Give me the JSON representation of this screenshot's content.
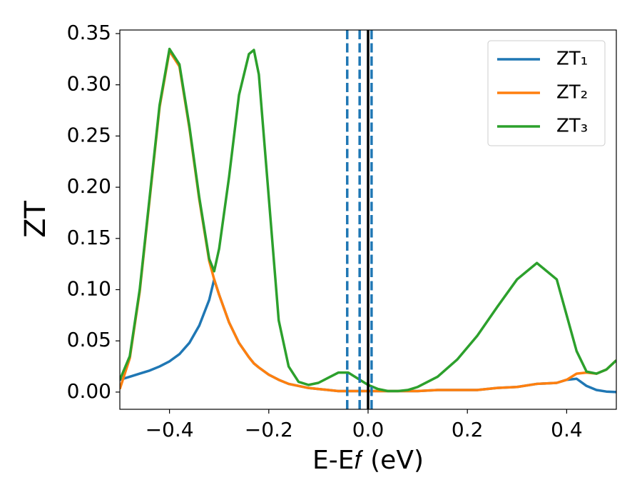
{
  "chart_data": {
    "type": "line",
    "xlabel": "E-E𝑓 (eV)",
    "ylabel": "ZT",
    "x": [
      -0.5,
      -0.48,
      -0.46,
      -0.44,
      -0.42,
      -0.4,
      -0.38,
      -0.36,
      -0.34,
      -0.32,
      -0.31,
      -0.3,
      -0.28,
      -0.26,
      -0.24,
      -0.23,
      -0.22,
      -0.2,
      -0.18,
      -0.16,
      -0.14,
      -0.12,
      -0.1,
      -0.08,
      -0.06,
      -0.04,
      -0.02,
      0.0,
      0.02,
      0.04,
      0.06,
      0.08,
      0.1,
      0.14,
      0.18,
      0.22,
      0.26,
      0.3,
      0.34,
      0.38,
      0.4,
      0.42,
      0.44,
      0.46,
      0.48,
      0.5
    ],
    "series": [
      {
        "name": "ZT₁",
        "color": "#1f77b4",
        "values": [
          0.012,
          0.015,
          0.018,
          0.021,
          0.025,
          0.03,
          0.037,
          0.048,
          0.065,
          0.09,
          0.11,
          0.095,
          0.068,
          0.048,
          0.034,
          0.028,
          0.024,
          0.017,
          0.012,
          0.008,
          0.006,
          0.004,
          0.003,
          0.002,
          0.001,
          0.001,
          0.001,
          0.001,
          0.001,
          0.001,
          0.001,
          0.001,
          0.001,
          0.002,
          0.002,
          0.002,
          0.004,
          0.005,
          0.008,
          0.009,
          0.012,
          0.013,
          0.006,
          0.002,
          0.0005,
          0.0
        ]
      },
      {
        "name": "ZT₂",
        "color": "#ff7f0e",
        "values": [
          0.003,
          0.033,
          0.098,
          0.188,
          0.278,
          0.333,
          0.318,
          0.258,
          0.188,
          0.128,
          0.11,
          0.095,
          0.068,
          0.048,
          0.034,
          0.028,
          0.024,
          0.017,
          0.012,
          0.008,
          0.006,
          0.004,
          0.003,
          0.002,
          0.001,
          0.001,
          0.001,
          0.001,
          0.001,
          0.001,
          0.001,
          0.001,
          0.001,
          0.002,
          0.002,
          0.002,
          0.004,
          0.005,
          0.008,
          0.009,
          0.012,
          0.018,
          0.019,
          0.018,
          0.022,
          0.031
        ]
      },
      {
        "name": "ZT₃",
        "color": "#2ca02c",
        "values": [
          0.012,
          0.035,
          0.1,
          0.19,
          0.28,
          0.335,
          0.32,
          0.26,
          0.19,
          0.13,
          0.118,
          0.14,
          0.21,
          0.29,
          0.33,
          0.334,
          0.31,
          0.19,
          0.07,
          0.025,
          0.01,
          0.007,
          0.009,
          0.014,
          0.019,
          0.019,
          0.013,
          0.007,
          0.003,
          0.001,
          0.001,
          0.002,
          0.005,
          0.015,
          0.032,
          0.055,
          0.083,
          0.11,
          0.126,
          0.11,
          0.075,
          0.04,
          0.02,
          0.018,
          0.022,
          0.031
        ]
      }
    ],
    "vlines": [
      {
        "x": -0.042,
        "color": "#1f77b4",
        "style": "dashed"
      },
      {
        "x": -0.017,
        "color": "#1f77b4",
        "style": "dashed"
      },
      {
        "x": 0.007,
        "color": "#1f77b4",
        "style": "dashed"
      },
      {
        "x": 0.0,
        "color": "#000000",
        "style": "solid"
      }
    ],
    "xlim": [
      -0.5,
      0.5
    ],
    "xticks": [
      {
        "value": -0.4,
        "label": "−0.4"
      },
      {
        "value": -0.2,
        "label": "−0.2"
      },
      {
        "value": 0.0,
        "label": "0.0"
      },
      0.2,
      0.4
    ],
    "ylim": [
      -0.0168,
      0.3535
    ],
    "yticks": [
      {
        "value": 0,
        "label": "0.00"
      },
      {
        "value": 0.05,
        "label": "0.05"
      },
      {
        "value": 0.1,
        "label": "0.10"
      },
      {
        "value": 0.15,
        "label": "0.15"
      },
      {
        "value": 0.2,
        "label": "0.20"
      },
      {
        "value": 0.25,
        "label": "0.25"
      },
      {
        "value": 0.3,
        "label": "0.30"
      },
      {
        "value": 0.35,
        "label": "0.35"
      }
    ],
    "legend": "upper right",
    "grid": false
  }
}
